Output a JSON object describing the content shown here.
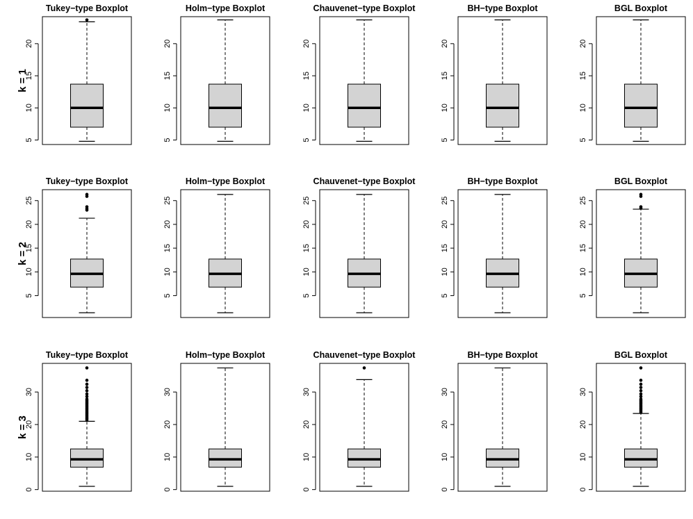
{
  "chart_data": {
    "type": "boxplot",
    "title": "",
    "row_labels": [
      "k = 1",
      "k = 2",
      "k = 3"
    ],
    "method_titles": [
      "Tukey−type Boxplot",
      "Holm−type Boxplot",
      "Chauvenet−type Boxplot",
      "BH−type Boxplot",
      "BGL Boxplot"
    ],
    "rows": [
      {
        "label": "k = 1",
        "ylim": [
          4.3,
          24.2
        ],
        "yticks": [
          5,
          10,
          15,
          20
        ],
        "panels": [
          {
            "title": "Tukey−type Boxplot",
            "lower_whisker": 4.8,
            "q1": 7.0,
            "median": 10.0,
            "q3": 13.7,
            "upper_whisker": 23.4,
            "outliers": [
              23.7
            ]
          },
          {
            "title": "Holm−type Boxplot",
            "lower_whisker": 4.8,
            "q1": 7.0,
            "median": 10.0,
            "q3": 13.7,
            "upper_whisker": 23.7,
            "outliers": []
          },
          {
            "title": "Chauvenet−type Boxplot",
            "lower_whisker": 4.8,
            "q1": 7.0,
            "median": 10.0,
            "q3": 13.7,
            "upper_whisker": 23.7,
            "outliers": []
          },
          {
            "title": "BH−type Boxplot",
            "lower_whisker": 4.8,
            "q1": 7.0,
            "median": 10.0,
            "q3": 13.7,
            "upper_whisker": 23.7,
            "outliers": []
          },
          {
            "title": "BGL Boxplot",
            "lower_whisker": 4.8,
            "q1": 7.0,
            "median": 10.0,
            "q3": 13.7,
            "upper_whisker": 23.7,
            "outliers": []
          }
        ]
      },
      {
        "label": "k = 2",
        "ylim": [
          0.4,
          27.3
        ],
        "yticks": [
          5,
          10,
          15,
          20,
          25
        ],
        "panels": [
          {
            "title": "Tukey−type Boxplot",
            "lower_whisker": 1.4,
            "q1": 6.8,
            "median": 9.6,
            "q3": 12.7,
            "upper_whisker": 21.3,
            "outliers": [
              23.0,
              23.3,
              23.7,
              25.9,
              26.3
            ]
          },
          {
            "title": "Holm−type Boxplot",
            "lower_whisker": 1.4,
            "q1": 6.8,
            "median": 9.6,
            "q3": 12.7,
            "upper_whisker": 26.3,
            "outliers": []
          },
          {
            "title": "Chauvenet−type Boxplot",
            "lower_whisker": 1.4,
            "q1": 6.8,
            "median": 9.6,
            "q3": 12.7,
            "upper_whisker": 26.3,
            "outliers": []
          },
          {
            "title": "BH−type Boxplot",
            "lower_whisker": 1.4,
            "q1": 6.8,
            "median": 9.6,
            "q3": 12.7,
            "upper_whisker": 26.3,
            "outliers": []
          },
          {
            "title": "BGL Boxplot",
            "lower_whisker": 1.4,
            "q1": 6.8,
            "median": 9.6,
            "q3": 12.7,
            "upper_whisker": 23.2,
            "outliers": [
              23.4,
              23.7,
              25.9,
              26.3
            ]
          }
        ]
      },
      {
        "label": "k = 3",
        "ylim": [
          -0.5,
          38.8
        ],
        "yticks": [
          0,
          10,
          20,
          30
        ],
        "panels": [
          {
            "title": "Tukey−type Boxplot",
            "lower_whisker": 1.0,
            "q1": 6.9,
            "median": 9.3,
            "q3": 12.5,
            "upper_whisker": 21.0,
            "outliers": [
              21.4,
              21.8,
              22.2,
              22.6,
              23.0,
              23.4,
              23.8,
              24.2,
              24.6,
              25.0,
              25.4,
              25.8,
              26.2,
              26.6,
              27.0,
              27.4,
              27.8,
              28.6,
              29.4,
              30.4,
              31.4,
              32.4,
              33.6,
              37.4
            ]
          },
          {
            "title": "Holm−type Boxplot",
            "lower_whisker": 1.0,
            "q1": 6.9,
            "median": 9.3,
            "q3": 12.5,
            "upper_whisker": 37.4,
            "outliers": []
          },
          {
            "title": "Chauvenet−type Boxplot",
            "lower_whisker": 1.0,
            "q1": 6.9,
            "median": 9.3,
            "q3": 12.5,
            "upper_whisker": 33.8,
            "outliers": [
              37.4
            ]
          },
          {
            "title": "BH−type Boxplot",
            "lower_whisker": 1.0,
            "q1": 6.9,
            "median": 9.3,
            "q3": 12.5,
            "upper_whisker": 37.4,
            "outliers": []
          },
          {
            "title": "BGL Boxplot",
            "lower_whisker": 1.0,
            "q1": 6.9,
            "median": 9.3,
            "q3": 12.5,
            "upper_whisker": 23.4,
            "outliers": [
              23.8,
              24.2,
              24.6,
              25.0,
              25.4,
              25.8,
              26.2,
              26.6,
              27.0,
              27.4,
              27.8,
              28.6,
              29.4,
              30.4,
              31.4,
              32.4,
              33.6,
              37.4
            ]
          }
        ]
      }
    ],
    "box_fill": "#d3d3d3",
    "line_color": "#000000"
  }
}
